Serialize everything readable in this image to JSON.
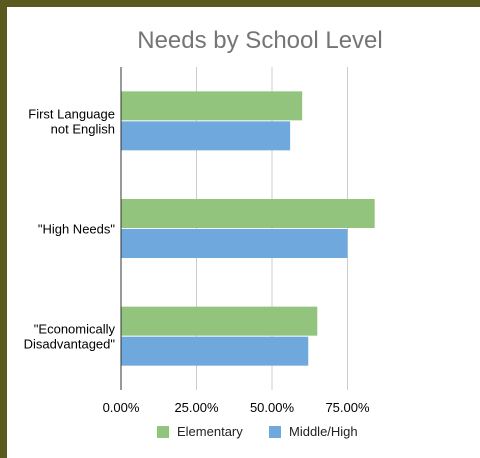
{
  "chart_data": {
    "type": "bar",
    "orientation": "horizontal",
    "title": "Needs by School Level",
    "categories": [
      [
        "First Language",
        "not English"
      ],
      [
        "\"High Needs\""
      ],
      [
        "\"Economically",
        "Disadvantaged\""
      ]
    ],
    "series": [
      {
        "name": "Elementary",
        "color": "#93c47d",
        "values": [
          0.6,
          0.84,
          0.65
        ]
      },
      {
        "name": "Middle/High",
        "color": "#6fa8dc",
        "values": [
          0.56,
          0.75,
          0.62
        ]
      }
    ],
    "xlim": [
      0,
      1.0
    ],
    "x_ticks": [
      0,
      0.25,
      0.5,
      0.75
    ],
    "x_tick_labels": [
      "0.00%",
      "25.00%",
      "50.00%",
      "75.00%"
    ],
    "grid": true,
    "legend_position": "bottom"
  }
}
